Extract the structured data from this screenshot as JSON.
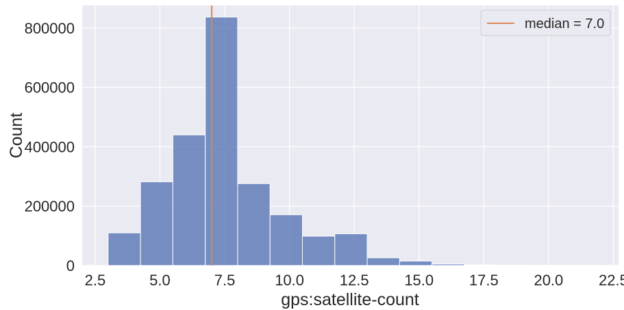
{
  "chart_data": {
    "type": "bar",
    "title": "",
    "xlabel": "gps:satellite-count",
    "ylabel": "Count",
    "xlim": [
      2.0,
      22.7
    ],
    "ylim": [
      0,
      876000
    ],
    "x_ticks": [
      2.5,
      5.0,
      7.5,
      10.0,
      12.5,
      15.0,
      17.5,
      20.0,
      22.5
    ],
    "x_tick_labels": [
      "2.5",
      "5.0",
      "7.5",
      "10.0",
      "12.5",
      "15.0",
      "17.5",
      "20.0",
      "22.5"
    ],
    "y_ticks": [
      0,
      200000,
      400000,
      600000,
      800000
    ],
    "y_tick_labels": [
      "0",
      "200000",
      "400000",
      "600000",
      "800000"
    ],
    "grid": true,
    "legend": {
      "placement": "top-right",
      "label": "median = 7.0"
    },
    "median": 7.0,
    "bin_edges": [
      3.0,
      4.25,
      5.5,
      6.75,
      8.0,
      9.25,
      10.5,
      11.75,
      13.0,
      14.25,
      15.5,
      16.75,
      18.0,
      19.25,
      20.5,
      21.75,
      23.0
    ],
    "values": [
      110000,
      282000,
      440000,
      837000,
      276000,
      171000,
      99000,
      107000,
      26000,
      15000,
      5000,
      2000,
      1000,
      500,
      300,
      200
    ],
    "colors": {
      "bar": "#5975b4",
      "bar_edge": "#ffffff",
      "median_line": "#dd8452",
      "plot_background": "#eaeaf2",
      "grid": "#ffffff"
    }
  }
}
